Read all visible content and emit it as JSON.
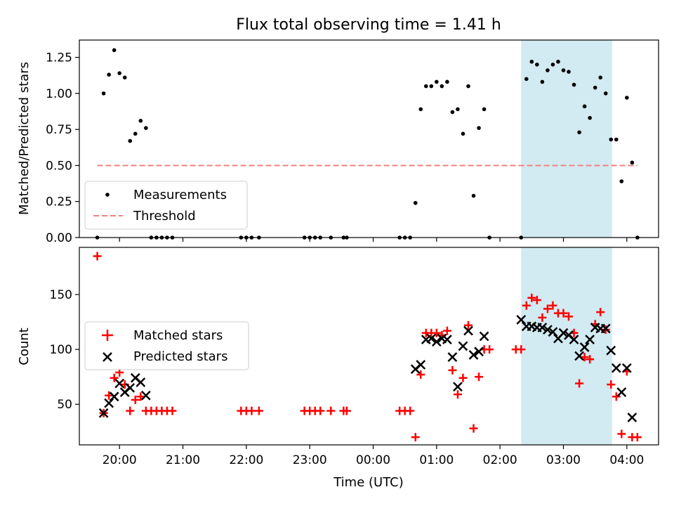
{
  "chart_data": [
    {
      "type": "scatter",
      "title": "Flux total observing time = 1.41 h",
      "xlabel": "",
      "ylabel": "Matched/Predicted stars",
      "xlim": [
        "19:22",
        "04:30"
      ],
      "ylim": [
        0,
        1.37
      ],
      "yticks": [
        0.0,
        0.25,
        0.5,
        0.75,
        1.0,
        1.25
      ],
      "ytick_labels": [
        "0.00",
        "0.25",
        "0.50",
        "0.75",
        "1.00",
        "1.25"
      ],
      "highlight_span": [
        "02:20",
        "03:46"
      ],
      "highlight_color": "#add8e6",
      "legend": {
        "position": "lower-left",
        "entries": [
          "Measurements",
          "Threshold"
        ]
      },
      "series": [
        {
          "name": "Measurements",
          "marker": "dot",
          "color": "#000000",
          "points": [
            [
              "19:39",
              0.0
            ],
            [
              "19:45",
              1.0
            ],
            [
              "19:50",
              1.13
            ],
            [
              "19:55",
              1.3
            ],
            [
              "20:00",
              1.14
            ],
            [
              "20:05",
              1.11
            ],
            [
              "20:10",
              0.67
            ],
            [
              "20:15",
              0.72
            ],
            [
              "20:20",
              0.81
            ],
            [
              "20:25",
              0.76
            ],
            [
              "20:30",
              0.0
            ],
            [
              "20:35",
              0.0
            ],
            [
              "20:40",
              0.0
            ],
            [
              "20:45",
              0.0
            ],
            [
              "20:50",
              0.0
            ],
            [
              "21:55",
              0.0
            ],
            [
              "22:00",
              0.0
            ],
            [
              "22:05",
              0.0
            ],
            [
              "22:12",
              0.0
            ],
            [
              "22:55",
              0.0
            ],
            [
              "23:00",
              0.0
            ],
            [
              "23:05",
              0.0
            ],
            [
              "23:10",
              0.0
            ],
            [
              "23:20",
              0.0
            ],
            [
              "23:32",
              0.0
            ],
            [
              "23:35",
              0.0
            ],
            [
              "00:25",
              0.0
            ],
            [
              "00:30",
              0.0
            ],
            [
              "00:35",
              0.0
            ],
            [
              "00:40",
              0.24
            ],
            [
              "00:45",
              0.89
            ],
            [
              "00:50",
              1.05
            ],
            [
              "00:55",
              1.05
            ],
            [
              "01:00",
              1.08
            ],
            [
              "01:05",
              1.05
            ],
            [
              "01:10",
              1.08
            ],
            [
              "01:15",
              0.87
            ],
            [
              "01:20",
              0.89
            ],
            [
              "01:25",
              0.72
            ],
            [
              "01:30",
              1.05
            ],
            [
              "01:35",
              0.29
            ],
            [
              "01:40",
              0.76
            ],
            [
              "01:45",
              0.89
            ],
            [
              "01:50",
              0.0
            ],
            [
              "02:20",
              0.0
            ],
            [
              "02:25",
              1.1
            ],
            [
              "02:30",
              1.22
            ],
            [
              "02:35",
              1.2
            ],
            [
              "02:40",
              1.08
            ],
            [
              "02:45",
              1.16
            ],
            [
              "02:50",
              1.2
            ],
            [
              "02:55",
              1.22
            ],
            [
              "03:00",
              1.16
            ],
            [
              "03:05",
              1.15
            ],
            [
              "03:10",
              1.06
            ],
            [
              "03:15",
              0.73
            ],
            [
              "03:20",
              0.91
            ],
            [
              "03:25",
              0.83
            ],
            [
              "03:30",
              1.04
            ],
            [
              "03:35",
              1.11
            ],
            [
              "03:40",
              1.0
            ],
            [
              "03:45",
              0.68
            ],
            [
              "03:50",
              0.68
            ],
            [
              "03:55",
              0.39
            ],
            [
              "04:00",
              0.97
            ],
            [
              "04:05",
              0.52
            ],
            [
              "04:10",
              0.0
            ]
          ]
        },
        {
          "name": "Threshold",
          "type": "line",
          "style": "dashed",
          "color": "#f08080",
          "points": [
            [
              "19:39",
              0.5
            ],
            [
              "04:10",
              0.5
            ]
          ]
        }
      ]
    },
    {
      "type": "scatter",
      "title": "",
      "xlabel": "Time (UTC)",
      "ylabel": "Count",
      "xlim": [
        "19:22",
        "04:30"
      ],
      "ylim": [
        13,
        193
      ],
      "yticks": [
        50,
        100,
        150
      ],
      "ytick_labels": [
        "50",
        "100",
        "150"
      ],
      "xticks": [
        "20:00",
        "21:00",
        "22:00",
        "23:00",
        "00:00",
        "01:00",
        "02:00",
        "03:00",
        "04:00"
      ],
      "highlight_span": [
        "02:20",
        "03:46"
      ],
      "highlight_color": "#add8e6",
      "legend": {
        "position": "center-left",
        "entries": [
          "Matched stars",
          "Predicted stars"
        ]
      },
      "series": [
        {
          "name": "Matched stars",
          "marker": "plus",
          "color": "#ff0000",
          "points": [
            [
              "19:39",
              185
            ],
            [
              "19:45",
              42
            ],
            [
              "19:50",
              58
            ],
            [
              "19:55",
              74
            ],
            [
              "20:00",
              79
            ],
            [
              "20:05",
              68
            ],
            [
              "20:10",
              44
            ],
            [
              "20:15",
              54
            ],
            [
              "20:20",
              57
            ],
            [
              "20:25",
              44
            ],
            [
              "20:30",
              44
            ],
            [
              "20:35",
              44
            ],
            [
              "20:40",
              44
            ],
            [
              "20:45",
              44
            ],
            [
              "20:50",
              44
            ],
            [
              "21:55",
              44
            ],
            [
              "22:00",
              44
            ],
            [
              "22:05",
              44
            ],
            [
              "22:12",
              44
            ],
            [
              "22:55",
              44
            ],
            [
              "23:00",
              44
            ],
            [
              "23:05",
              44
            ],
            [
              "23:10",
              44
            ],
            [
              "23:20",
              44
            ],
            [
              "23:32",
              44
            ],
            [
              "23:35",
              44
            ],
            [
              "00:25",
              44
            ],
            [
              "00:30",
              44
            ],
            [
              "00:35",
              44
            ],
            [
              "00:40",
              20
            ],
            [
              "00:45",
              77
            ],
            [
              "00:50",
              115
            ],
            [
              "00:55",
              115
            ],
            [
              "01:00",
              115
            ],
            [
              "01:05",
              113
            ],
            [
              "01:10",
              117
            ],
            [
              "01:15",
              81
            ],
            [
              "01:20",
              59
            ],
            [
              "01:25",
              74
            ],
            [
              "01:30",
              122
            ],
            [
              "01:35",
              28
            ],
            [
              "01:40",
              75
            ],
            [
              "01:45",
              100
            ],
            [
              "01:50",
              100
            ],
            [
              "02:15",
              100
            ],
            [
              "02:20",
              100
            ],
            [
              "02:25",
              140
            ],
            [
              "02:30",
              147
            ],
            [
              "02:35",
              145
            ],
            [
              "02:40",
              129
            ],
            [
              "02:45",
              137
            ],
            [
              "02:50",
              140
            ],
            [
              "02:55",
              133
            ],
            [
              "03:00",
              133
            ],
            [
              "03:05",
              130
            ],
            [
              "03:10",
              115
            ],
            [
              "03:15",
              69
            ],
            [
              "03:20",
              93
            ],
            [
              "03:25",
              91
            ],
            [
              "03:30",
              123
            ],
            [
              "03:35",
              134
            ],
            [
              "03:40",
              118
            ],
            [
              "03:45",
              68
            ],
            [
              "03:50",
              57
            ],
            [
              "03:55",
              23
            ],
            [
              "04:00",
              80
            ],
            [
              "04:05",
              20
            ],
            [
              "04:10",
              20
            ]
          ]
        },
        {
          "name": "Predicted stars",
          "marker": "x",
          "color": "#000000",
          "points": [
            [
              "19:45",
              42
            ],
            [
              "19:50",
              51
            ],
            [
              "19:55",
              57
            ],
            [
              "20:00",
              69
            ],
            [
              "20:05",
              61
            ],
            [
              "20:10",
              65
            ],
            [
              "20:15",
              74
            ],
            [
              "20:20",
              70
            ],
            [
              "20:25",
              58
            ],
            [
              "00:40",
              82
            ],
            [
              "00:45",
              86
            ],
            [
              "00:50",
              109
            ],
            [
              "00:55",
              110
            ],
            [
              "01:00",
              107
            ],
            [
              "01:05",
              110
            ],
            [
              "01:10",
              109
            ],
            [
              "01:15",
              93
            ],
            [
              "01:20",
              66
            ],
            [
              "01:25",
              103
            ],
            [
              "01:30",
              117
            ],
            [
              "01:35",
              95
            ],
            [
              "01:40",
              98
            ],
            [
              "01:45",
              112
            ],
            [
              "02:20",
              127
            ],
            [
              "02:25",
              121
            ],
            [
              "02:30",
              121
            ],
            [
              "02:35",
              120
            ],
            [
              "02:40",
              120
            ],
            [
              "02:45",
              118
            ],
            [
              "02:50",
              116
            ],
            [
              "02:55",
              110
            ],
            [
              "03:00",
              115
            ],
            [
              "03:05",
              113
            ],
            [
              "03:10",
              109
            ],
            [
              "03:15",
              94
            ],
            [
              "03:20",
              102
            ],
            [
              "03:25",
              109
            ],
            [
              "03:30",
              120
            ],
            [
              "03:35",
              119
            ],
            [
              "03:40",
              119
            ],
            [
              "03:45",
              99
            ],
            [
              "03:50",
              83
            ],
            [
              "03:55",
              61
            ],
            [
              "04:00",
              83
            ],
            [
              "04:05",
              38
            ]
          ]
        }
      ]
    }
  ]
}
